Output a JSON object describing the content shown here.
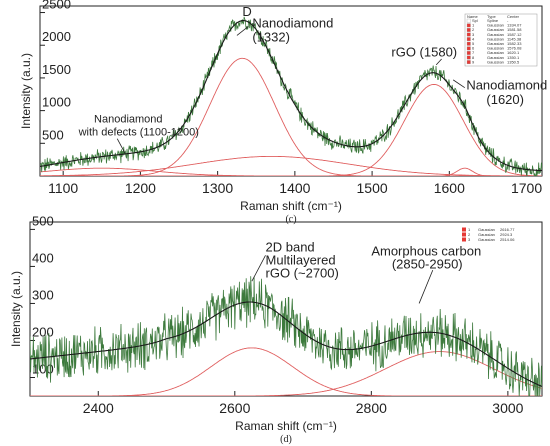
{
  "chart_data": [
    {
      "type": "line",
      "caption": "(c)",
      "xlabel": "Raman shift (cm⁻¹)",
      "ylabel": "Intensity (a.u.)",
      "xlim": [
        1070,
        1720
      ],
      "ylim": [
        0,
        2600
      ],
      "x_ticks": [
        1100,
        1200,
        1300,
        1400,
        1500,
        1600,
        1700
      ],
      "y_ticks": [
        500,
        1000,
        1500,
        2000,
        2500
      ],
      "baseline": {
        "points": [
          [
            1070,
            80
          ],
          [
            1300,
            280
          ],
          [
            1400,
            320
          ],
          [
            1550,
            160
          ],
          [
            1720,
            80
          ]
        ]
      },
      "components": [
        {
          "center": 1332,
          "amplitude": 1800,
          "width": 42
        },
        {
          "center": 1580,
          "amplitude": 1400,
          "width": 38
        },
        {
          "center": 1620,
          "amplitude": 120,
          "width": 10
        },
        {
          "center": 1150,
          "amplitude": 120,
          "width": 70
        },
        {
          "center": 1370,
          "amplitude": 300,
          "width": 100
        }
      ],
      "annotations": [
        {
          "text": "D",
          "x": 1332,
          "y": 2450
        },
        {
          "text": "Nanodiamond",
          "x": 1345,
          "y": 2270
        },
        {
          "text": "(1332)",
          "x": 1345,
          "y": 2060
        },
        {
          "text": "rGO (1580)",
          "x": 1525,
          "y": 1830
        },
        {
          "text": "Nanodiamond",
          "x": 1622,
          "y": 1320
        },
        {
          "text": "(1620)",
          "x": 1648,
          "y": 1100
        },
        {
          "text": "Nanodiamond",
          "x": 1140,
          "y": 820
        },
        {
          "text": "with defects (1100-1200)",
          "x": 1120,
          "y": 620
        }
      ],
      "legend": {
        "placement": "top-right",
        "headers": [
          "Name",
          "Type",
          "Center"
        ],
        "rows": [
          {
            "name": "Spl",
            "type": "Spline",
            "center": "-"
          },
          {
            "name": "1",
            "type": "Gaussian",
            "center": "1334.07"
          },
          {
            "name": "2",
            "type": "Gaussian",
            "center": "1581.58"
          },
          {
            "name": "3",
            "type": "Gaussian",
            "center": "1587.12"
          },
          {
            "name": "4",
            "type": "Gaussian",
            "center": "1145.38"
          },
          {
            "name": "5",
            "type": "Gaussian",
            "center": "1582.33"
          },
          {
            "name": "6",
            "type": "Gaussian",
            "center": "1576.08"
          },
          {
            "name": "7",
            "type": "Gaussian",
            "center": "1620.1"
          },
          {
            "name": "8",
            "type": "Gaussian",
            "center": "1350.1"
          },
          {
            "name": "9",
            "type": "Gaussian",
            "center": "1350.5"
          }
        ]
      }
    },
    {
      "type": "line",
      "caption": "(d)",
      "xlabel": "Raman shift (cm⁻¹)",
      "ylabel": "Intensity (a.u.)",
      "xlim": [
        2300,
        3050
      ],
      "ylim": [
        50,
        520
      ],
      "x_ticks": [
        2400,
        2600,
        2800,
        3000
      ],
      "y_ticks": [
        100,
        200,
        300,
        400,
        500
      ],
      "baseline": {
        "points": [
          [
            2300,
            150
          ],
          [
            2500,
            190
          ],
          [
            2650,
            170
          ],
          [
            2900,
            100
          ],
          [
            3050,
            55
          ]
        ]
      },
      "components": [
        {
          "center": 2625,
          "amplitude": 130,
          "width": 60
        },
        {
          "center": 2900,
          "amplitude": 120,
          "width": 80
        }
      ],
      "annotations": [
        {
          "text": "2D band",
          "x": 2645,
          "y": 440
        },
        {
          "text": "Multilayered",
          "x": 2645,
          "y": 405
        },
        {
          "text": "rGO (~2700)",
          "x": 2645,
          "y": 370
        },
        {
          "text": "Amorphous carbon",
          "x": 2800,
          "y": 430
        },
        {
          "text": "(2850-2950)",
          "x": 2830,
          "y": 395
        }
      ],
      "legend": {
        "placement": "top-left",
        "rows": [
          {
            "name": "1",
            "type": "Gaussian",
            "center": "2616.77"
          },
          {
            "name": "2",
            "type": "Gaussian",
            "center": "2924.3"
          },
          {
            "name": "3",
            "type": "Gaussian",
            "center": "2514.06"
          }
        ]
      }
    }
  ],
  "colors": {
    "data": "#3d7a3d",
    "fit": "#1a1a1a",
    "component": "#e06060",
    "legend_swatch": "#e53935"
  }
}
